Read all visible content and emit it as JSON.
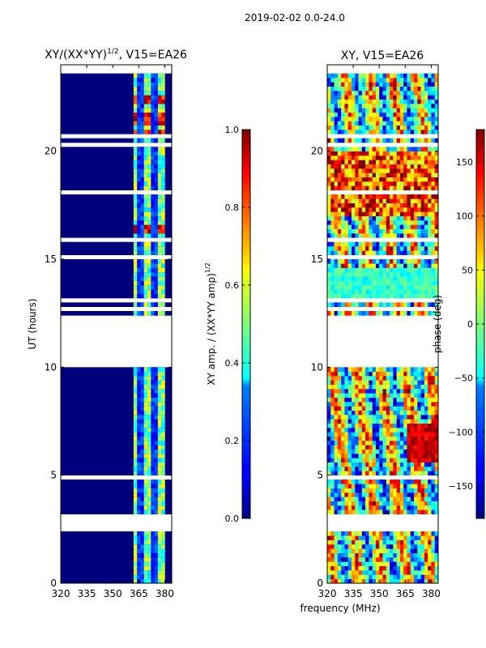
{
  "suptitle": "2019-02-02 0.0-24.0",
  "shared_xlabel": "frequency (MHz)",
  "chart_data": [
    {
      "type": "heatmap",
      "title": "XY/(XX*YY)",
      "title_sup": "1/2",
      "title_suffix": ", V15=EA26",
      "xlabel": "",
      "ylabel": "UT (hours)",
      "xlim": [
        320,
        384
      ],
      "ylim": [
        0,
        24
      ],
      "xticks": [
        320,
        335,
        350,
        365,
        380
      ],
      "yticks": [
        0,
        5,
        10,
        15,
        20
      ],
      "colormap": "jet",
      "colorbar": {
        "label": "XY amp. / (XX*YY amp)",
        "label_sup": "1/2",
        "range": [
          0.0,
          1.0
        ],
        "ticks": [
          "0.0",
          "0.2",
          "0.4",
          "0.6",
          "0.8",
          "1.0"
        ]
      },
      "hot_band_mhz": [
        362,
        380
      ],
      "bright_hours": [
        [
          21.3,
          21.9
        ],
        [
          22.3,
          22.7
        ],
        [
          16.3,
          16.6
        ],
        [
          20.8,
          21.1
        ]
      ]
    },
    {
      "type": "heatmap",
      "title": "XY, V15=EA26",
      "xlabel": "",
      "ylabel": "",
      "xlim": [
        320,
        384
      ],
      "ylim": [
        0,
        24
      ],
      "xticks": [
        320,
        335,
        350,
        365,
        380
      ],
      "yticks": [
        0,
        5,
        10,
        15,
        20
      ],
      "colormap": "jet",
      "colorbar": {
        "label": "phase (deg)",
        "range": [
          -180,
          180
        ],
        "ticks": [
          "−150",
          "−100",
          "−50",
          "0",
          "50",
          "100",
          "150"
        ]
      }
    }
  ],
  "flagged_hours": [
    [
      2.4,
      3.2
    ],
    [
      10.0,
      12.5
    ],
    [
      12.9,
      13.0
    ],
    [
      20.2,
      20.5
    ],
    [
      23.6,
      24.0
    ]
  ],
  "colors": {
    "low": "#00007f",
    "high": "#7f0000",
    "background": "#ffffff"
  }
}
